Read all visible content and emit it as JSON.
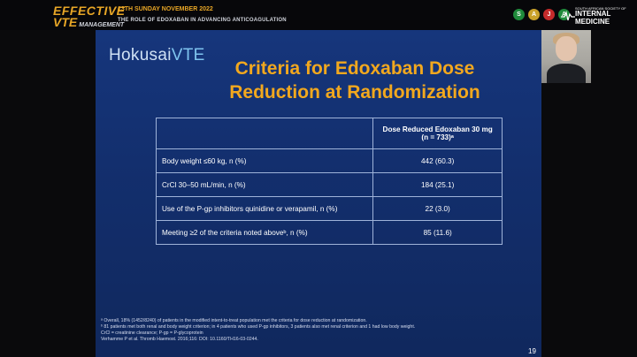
{
  "banner": {
    "brand_word1": "EFFECTIVE",
    "brand_word2": "VTE",
    "brand_sub": "MANAGEMENT",
    "date": "13TH SUNDAY NOVEMBER 2022",
    "theme": "THE ROLE OF EDOXABAN IN ADVANCING ANTICOAGULATION",
    "logo_letters": [
      "S",
      "A",
      "J",
      "A"
    ],
    "logo_colors": [
      "#1f8a3b",
      "#c9a12a",
      "#c42b2b",
      "#1f8a3b"
    ],
    "partner_small": "SOUTH AFRICAN SOCIETY OF",
    "partner_big": "INTERNAL MEDICINE"
  },
  "slide": {
    "logo_main": "Hokusai",
    "logo_accent": "VTE",
    "title": "Criteria for Edoxaban Dose Reduction at Randomization",
    "table": {
      "header_line1": "Dose Reduced Edoxaban 30 mg",
      "header_line2": "(n = 733)ᵃ",
      "rows": [
        {
          "label": "Body weight ≤60 kg, n (%)",
          "value": "442 (60.3)"
        },
        {
          "label": "CrCl 30–50 mL/min, n (%)",
          "value": "184 (25.1)"
        },
        {
          "label": "Use of the P-gp inhibitors quinidine or verapamil, n (%)",
          "value": "22 (3.0)"
        },
        {
          "label": "Meeting ≥2 of the criteria noted aboveᵇ, n (%)",
          "value": "85 (11.6)"
        }
      ]
    },
    "footnotes": [
      "ᵃ Overall, 18% (1452/8240) of patients in the modified intent-to-treat population met the criteria for dose reduction at randomization.",
      "ᵇ 81 patients met both renal and body weight criterion; in 4 patients who used P-gp inhibitors, 3 patients also met renal criterion and 1 had low body weight.",
      "CrCl = creatinine clearance; P-gp = P-glycoprotein",
      "Verhamme P et al. Thromb Haemost. 2016;116: DOI: 10.1160/TH16-03-0244."
    ],
    "page_number": "19"
  }
}
